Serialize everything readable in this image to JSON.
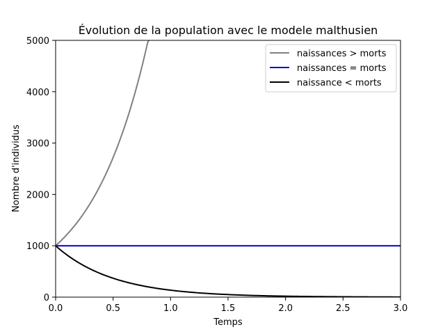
{
  "chart_data": {
    "type": "line",
    "title": "Évolution de la population avec le modele malthusien",
    "xlabel": "Temps",
    "ylabel": "Nombre d'individus",
    "xlim": [
      0,
      3
    ],
    "ylim": [
      0,
      5000
    ],
    "xticks": [
      "0.0",
      "0.5",
      "1.0",
      "1.5",
      "2.0",
      "2.5",
      "3.0"
    ],
    "yticks": [
      "0",
      "1000",
      "2000",
      "3000",
      "4000",
      "5000"
    ],
    "grid": false,
    "legend_position": "top-right",
    "series": [
      {
        "name": "naissances > morts",
        "color": "#808080",
        "x": [
          0,
          0.1,
          0.2,
          0.3,
          0.4,
          0.5,
          0.6,
          0.7,
          0.8,
          0.81
        ],
        "y": [
          1000,
          1223,
          1492,
          1822,
          2226,
          2718,
          3320,
          4055,
          4953,
          5000
        ]
      },
      {
        "name": "naissances = morts",
        "color": "#0000cc",
        "x": [
          0,
          3
        ],
        "y": [
          1000,
          1000
        ]
      },
      {
        "name": "naissance < morts",
        "color": "#000000",
        "x": [
          0,
          0.25,
          0.5,
          0.75,
          1.0,
          1.25,
          1.5,
          1.75,
          2.0,
          2.25,
          2.5,
          2.75,
          3.0
        ],
        "y": [
          1000,
          607,
          368,
          223,
          135,
          82,
          50,
          30,
          18,
          11,
          7,
          4,
          2
        ]
      }
    ]
  }
}
